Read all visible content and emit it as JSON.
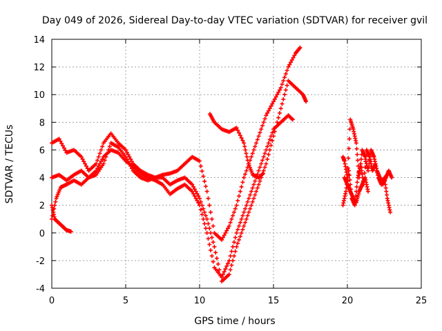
{
  "chart_data": {
    "type": "scatter",
    "title": "Day 049 of 2026, Sidereal Day-to-day VTEC variation (SDTVAR) for receiver gvil",
    "xlabel": "GPS time / hours",
    "ylabel": "SDTVAR / TECUs",
    "xlim": [
      0,
      25
    ],
    "ylim": [
      -4,
      14
    ],
    "xticks": [
      0,
      5,
      10,
      15,
      20,
      25
    ],
    "yticks": [
      -4,
      -2,
      0,
      2,
      4,
      6,
      8,
      10,
      12,
      14
    ],
    "grid": true,
    "marker": "+",
    "color": "#ff0000",
    "series": [
      {
        "x": [
          0.0,
          0.5,
          1.0,
          1.5,
          2.0,
          2.5,
          3.0,
          3.5,
          4.0,
          4.5,
          5.0,
          5.5,
          6.0,
          6.5,
          7.0,
          7.5,
          8.0,
          8.5,
          9.0,
          9.5,
          10.0,
          10.5,
          11.0,
          11.5,
          12.0,
          12.5,
          13.0,
          13.5,
          14.0,
          14.5,
          15.0,
          15.5,
          16.0,
          16.5,
          16.8
        ],
        "y": [
          6.5,
          6.8,
          5.8,
          6.0,
          5.5,
          4.5,
          5.0,
          6.5,
          7.2,
          6.5,
          6.0,
          5.0,
          4.5,
          4.2,
          4.0,
          4.2,
          4.3,
          4.5,
          5.0,
          5.5,
          5.2,
          3.0,
          0.0,
          -0.5,
          0.5,
          2.0,
          4.0,
          5.5,
          7.0,
          8.5,
          9.5,
          10.5,
          12.0,
          13.0,
          13.4
        ]
      },
      {
        "x": [
          0.0,
          0.5,
          1.0,
          1.5,
          2.0,
          2.5,
          3.0,
          3.5,
          4.0,
          4.5,
          5.0,
          5.5,
          6.0,
          6.5,
          7.0,
          7.5,
          8.0,
          8.5,
          9.0,
          9.5,
          10.0,
          10.5,
          11.0,
          11.5,
          12.0,
          12.5,
          13.0,
          13.5,
          14.0,
          14.5,
          15.0,
          15.5,
          16.0,
          16.5,
          17.0,
          17.2
        ],
        "y": [
          4.0,
          4.2,
          3.8,
          4.2,
          4.5,
          4.0,
          4.2,
          5.0,
          6.5,
          6.2,
          5.5,
          4.5,
          4.0,
          3.8,
          4.0,
          4.0,
          3.5,
          3.8,
          4.0,
          3.5,
          2.5,
          1.0,
          -1.0,
          -3.5,
          -3.0,
          -1.0,
          0.5,
          2.0,
          3.5,
          5.0,
          7.0,
          9.0,
          11.0,
          10.5,
          10.0,
          9.5
        ]
      },
      {
        "x": [
          0.0,
          0.3,
          0.6,
          1.0,
          1.5,
          2.0,
          2.5,
          3.0,
          3.5,
          4.0,
          4.5,
          5.0,
          5.5,
          6.0,
          6.5,
          7.0,
          7.5,
          8.0,
          8.5,
          9.0,
          9.5,
          10.0,
          10.5,
          11.0,
          11.5,
          12.0,
          12.5,
          13.0,
          13.5,
          14.0,
          14.5,
          15.0,
          15.5,
          16.0,
          16.3
        ],
        "y": [
          1.0,
          2.5,
          3.3,
          3.5,
          3.8,
          3.5,
          4.0,
          4.5,
          5.5,
          6.0,
          5.8,
          5.2,
          4.8,
          4.3,
          4.0,
          3.8,
          3.5,
          2.8,
          3.2,
          3.5,
          3.0,
          2.0,
          0.0,
          -2.5,
          -3.2,
          -2.0,
          0.0,
          1.5,
          3.0,
          4.5,
          6.0,
          7.5,
          8.0,
          8.5,
          8.2
        ]
      },
      {
        "x": [
          0.0,
          0.2,
          0.4,
          0.6,
          0.8,
          1.0,
          1.3
        ],
        "y": [
          2.0,
          1.0,
          0.8,
          0.6,
          0.4,
          0.2,
          0.1
        ]
      },
      {
        "x": [
          10.7,
          11.0,
          11.5,
          12.0,
          12.5,
          13.0,
          13.3,
          13.6,
          14.0,
          14.3
        ],
        "y": [
          8.6,
          8.0,
          7.5,
          7.3,
          7.6,
          6.5,
          5.0,
          4.2,
          4.0,
          4.3
        ]
      },
      {
        "x": [
          19.7,
          19.9,
          20.1,
          20.3,
          20.5,
          20.7,
          20.9,
          21.1,
          21.3,
          21.5,
          21.7,
          21.9,
          22.1,
          22.3,
          22.5,
          22.7,
          22.9
        ],
        "y": [
          2.0,
          3.0,
          4.5,
          2.5,
          2.0,
          4.0,
          5.0,
          3.5,
          6.0,
          5.5,
          4.5,
          5.0,
          4.0,
          3.5,
          4.0,
          2.5,
          1.5
        ]
      },
      {
        "x": [
          19.7,
          19.8,
          20.0,
          20.2,
          20.4,
          20.6,
          20.8,
          21.0,
          21.2,
          21.4,
          21.6,
          21.8,
          22.0,
          22.2,
          22.4,
          22.6,
          22.8,
          23.0
        ],
        "y": [
          5.5,
          5.2,
          4.0,
          8.2,
          7.5,
          6.5,
          4.0,
          6.0,
          5.5,
          4.5,
          6.0,
          5.5,
          4.5,
          4.0,
          3.5,
          4.0,
          4.5,
          4.0
        ]
      },
      {
        "x": [
          19.8,
          20.0,
          20.2,
          20.4,
          20.6,
          20.8,
          21.0,
          21.2,
          21.4
        ],
        "y": [
          4.0,
          3.5,
          3.0,
          2.5,
          2.2,
          3.0,
          3.5,
          4.0,
          3.0
        ]
      }
    ]
  }
}
